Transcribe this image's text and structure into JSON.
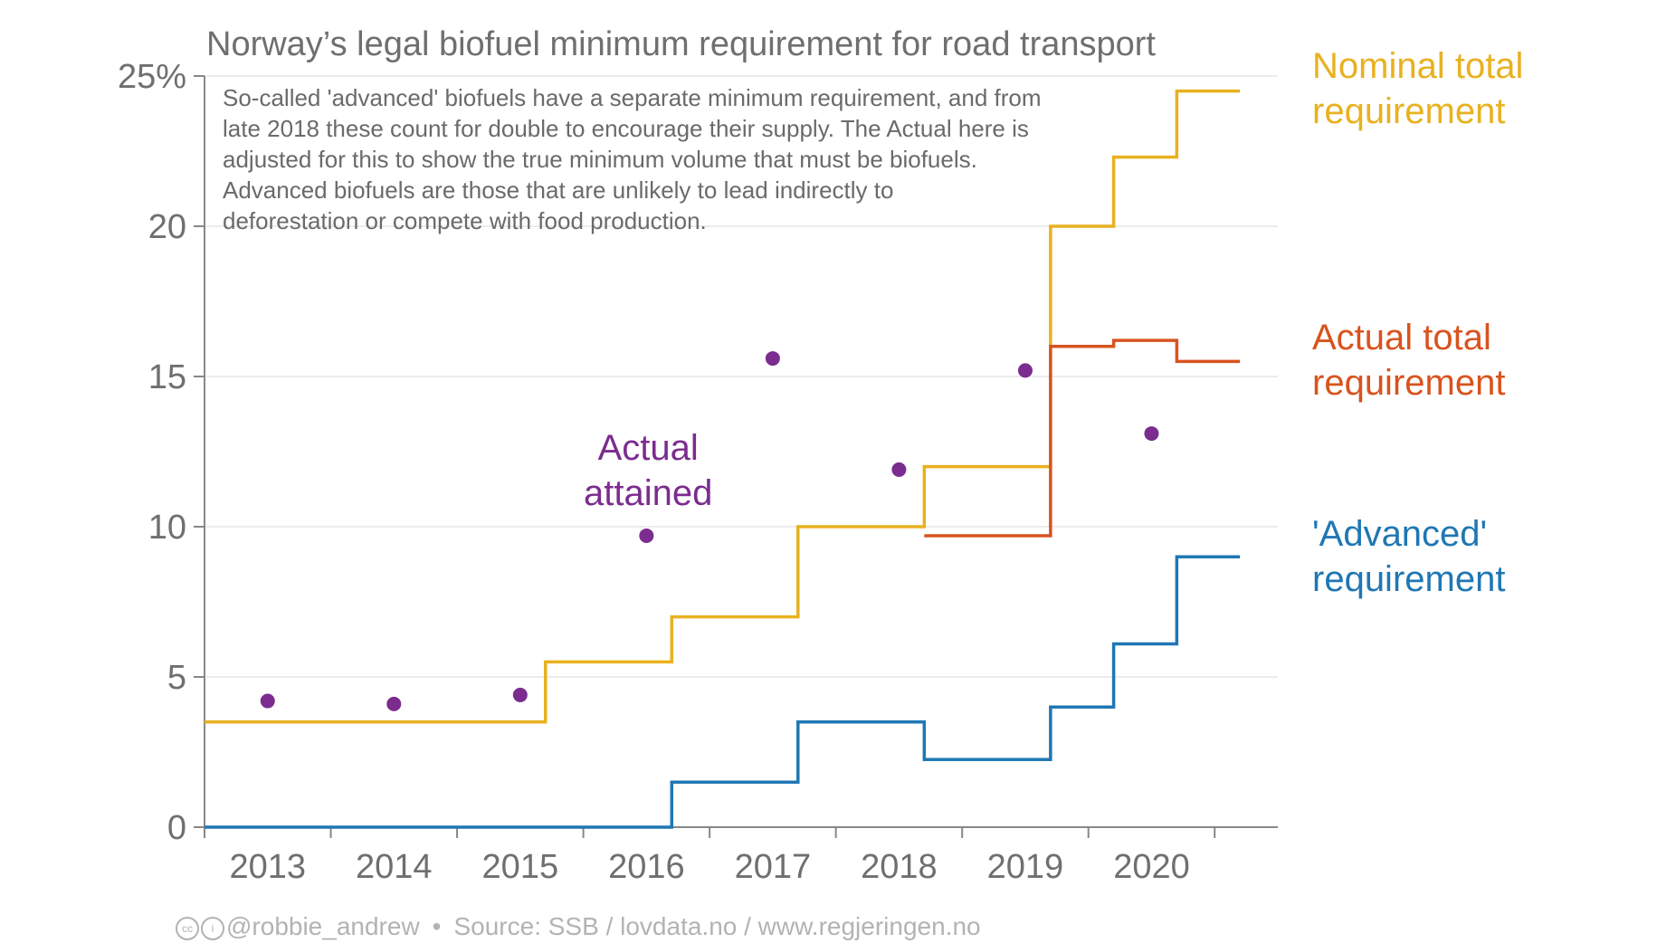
{
  "chart_data": {
    "type": "line",
    "title": "Norway’s legal biofuel minimum requirement for road transport",
    "note_lines": [
      "So-called 'advanced' biofuels have a separate minimum requirement, and from",
      "late 2018 these count for double to encourage their supply. The Actual here is",
      "adjusted for this to show the true minimum volume that must be biofuels.",
      "Advanced biofuels are those that are unlikely to lead indirectly to",
      "deforestation or compete with food production."
    ],
    "x_ticks": [
      "2013",
      "2014",
      "2015",
      "2016",
      "2017",
      "2018",
      "2019",
      "2020"
    ],
    "y_ticks": [
      "0",
      "5",
      "10",
      "15",
      "20",
      "25%"
    ],
    "ylim": [
      0,
      25
    ],
    "xlim": [
      2013,
      2021.5
    ],
    "grid": "horizontal",
    "series": [
      {
        "name": "Nominal total requirement",
        "label_lines": [
          "Nominal total",
          "requirement"
        ],
        "color": "#e8b11f",
        "steps": [
          [
            2013.0,
            2015.7,
            3.5
          ],
          [
            2015.7,
            2016.7,
            5.5
          ],
          [
            2016.7,
            2017.7,
            7.0
          ],
          [
            2017.7,
            2018.7,
            10.0
          ],
          [
            2018.7,
            2019.7,
            12.0
          ],
          [
            2019.7,
            2020.2,
            20.0
          ],
          [
            2020.2,
            2020.7,
            22.3
          ],
          [
            2020.7,
            2021.2,
            24.5
          ]
        ]
      },
      {
        "name": "Actual total requirement",
        "label_lines": [
          "Actual total",
          "requirement"
        ],
        "color": "#d9531e",
        "steps": [
          [
            2018.7,
            2019.7,
            9.7
          ],
          [
            2019.7,
            2020.2,
            16.0
          ],
          [
            2020.2,
            2020.7,
            16.2
          ],
          [
            2020.7,
            2021.2,
            15.5
          ]
        ]
      },
      {
        "name": "'Advanced' requirement",
        "label_lines": [
          "'Advanced'",
          "requirement"
        ],
        "color": "#1f77b4",
        "steps": [
          [
            2013.0,
            2016.7,
            0.0
          ],
          [
            2016.7,
            2017.7,
            1.5
          ],
          [
            2017.7,
            2018.7,
            3.5
          ],
          [
            2018.7,
            2019.7,
            2.25
          ],
          [
            2019.7,
            2020.2,
            4.0
          ],
          [
            2020.2,
            2020.7,
            6.1
          ],
          [
            2020.7,
            2021.2,
            9.0
          ]
        ]
      },
      {
        "name": "Actual attained",
        "label_lines": [
          "Actual",
          "attained"
        ],
        "color": "#7b2c8e",
        "points": [
          [
            2013.5,
            4.2
          ],
          [
            2014.5,
            4.1
          ],
          [
            2015.5,
            4.4
          ],
          [
            2016.5,
            9.7
          ],
          [
            2017.5,
            15.6
          ],
          [
            2018.5,
            11.9
          ],
          [
            2019.5,
            15.2
          ],
          [
            2020.5,
            13.1
          ]
        ]
      }
    ]
  },
  "footer": {
    "handle": "@robbie_andrew",
    "source": "Source: SSB / lovdata.no / www.regjeringen.no"
  }
}
